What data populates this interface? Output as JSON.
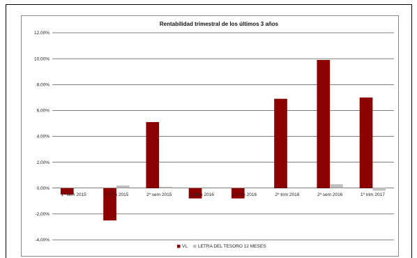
{
  "chart_data": {
    "type": "bar",
    "title": "Rentabilidad trimestral de los últimos 3 años",
    "categories": [
      "1º sem 2015",
      "1º trim 2015",
      "2º sem 2015",
      "1º trim 2016",
      "1º trim 2016",
      "2º trim 2016",
      "2º sem 2016",
      "1º trim 2017"
    ],
    "series": [
      {
        "name": "VL",
        "color": "#8b0000",
        "values": [
          -0.5,
          -2.5,
          5.1,
          -0.8,
          -0.8,
          6.9,
          9.9,
          7.0
        ]
      },
      {
        "name": "LETRA DEL TESORO 12 MESES",
        "color": "#c0c0c0",
        "values": [
          0.0,
          0.2,
          0.1,
          0.0,
          0.0,
          0.0,
          0.3,
          -0.2
        ]
      }
    ],
    "ylim": [
      -4,
      12
    ],
    "yticks": [
      "-4,00%",
      "-2,00%",
      "0,00%",
      "2,00%",
      "4,00%",
      "6,00%",
      "8,00%",
      "10,00%",
      "12,00%"
    ],
    "grid": true,
    "legend_position": "bottom"
  }
}
